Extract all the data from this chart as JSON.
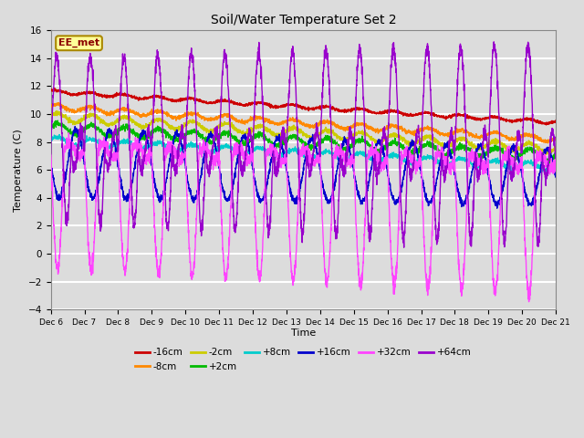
{
  "title": "Soil/Water Temperature Set 2",
  "xlabel": "Time",
  "ylabel": "Temperature (C)",
  "ylim": [
    -4,
    16
  ],
  "xlim": [
    0,
    15
  ],
  "annotation": "EE_met",
  "plot_bg_color": "#dcdcdc",
  "fig_bg_color": "#dcdcdc",
  "tick_labels": [
    "Dec 6",
    "Dec 7",
    "Dec 8",
    "Dec 9",
    "Dec 10",
    "Dec 11",
    "Dec 12",
    "Dec 13",
    "Dec 14",
    "Dec 15",
    "Dec 16",
    "Dec 17",
    "Dec 18",
    "Dec 19",
    "Dec 20",
    "Dec 21"
  ],
  "legend": [
    {
      "label": "-16cm",
      "color": "#cc0000"
    },
    {
      "label": "-8cm",
      "color": "#ff8800"
    },
    {
      "label": "-2cm",
      "color": "#cccc00"
    },
    {
      "label": "+2cm",
      "color": "#00bb00"
    },
    {
      "label": "+8cm",
      "color": "#00cccc"
    },
    {
      "label": "+16cm",
      "color": "#0000cc"
    },
    {
      "label": "+32cm",
      "color": "#ff44ff"
    },
    {
      "label": "+64cm",
      "color": "#9900cc"
    }
  ]
}
